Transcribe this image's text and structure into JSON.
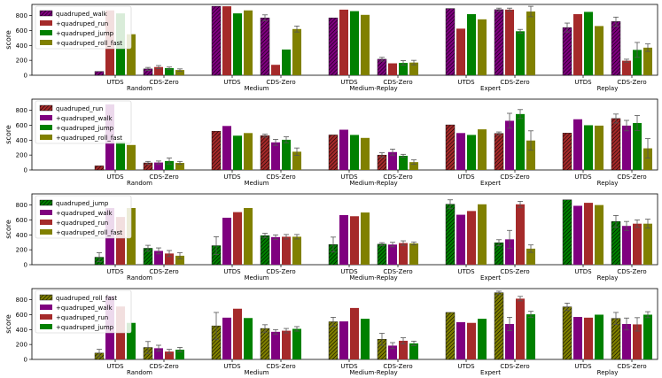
{
  "chart_data": [
    {
      "type": "bar",
      "ylabel": "score",
      "ylim": [
        0,
        950
      ],
      "yticks": [
        0,
        200,
        400,
        600,
        800
      ],
      "methods": [
        "UTDS",
        "CDS-Zero"
      ],
      "datasets": [
        "Random",
        "Medium",
        "Medium-Replay",
        "Expert",
        "Replay"
      ],
      "series": [
        {
          "name": "quadruped_walk",
          "color": "#7f007f",
          "hatch": true,
          "values": [
            [
              50,
              85
            ],
            [
              925,
              770
            ],
            [
              770,
              215
            ],
            [
              895,
              880
            ],
            [
              640,
              720
            ]
          ],
          "err": [
            [
              0,
              20
            ],
            [
              0,
              40
            ],
            [
              0,
              25
            ],
            [
              0,
              20
            ],
            [
              60,
              60
            ]
          ]
        },
        {
          "name": "+quadruped_run",
          "color": "#a52a2a",
          "hatch": false,
          "values": [
            [
              870,
              110
            ],
            [
              925,
              140
            ],
            [
              880,
              160
            ],
            [
              625,
              880
            ],
            [
              820,
              195
            ]
          ],
          "err": [
            [
              0,
              20
            ],
            [
              0,
              0
            ],
            [
              0,
              0
            ],
            [
              0,
              20
            ],
            [
              0,
              20
            ]
          ]
        },
        {
          "name": "+quadruped_jump",
          "color": "#008000",
          "hatch": false,
          "values": [
            [
              830,
              95
            ],
            [
              830,
              345
            ],
            [
              860,
              165
            ],
            [
              820,
              590
            ],
            [
              850,
              340
            ]
          ],
          "err": [
            [
              0,
              15
            ],
            [
              0,
              0
            ],
            [
              0,
              30
            ],
            [
              0,
              25
            ],
            [
              0,
              100
            ]
          ]
        },
        {
          "name": "+quadruped_roll_fast",
          "color": "#808000",
          "hatch": false,
          "values": [
            [
              550,
              70
            ],
            [
              870,
              620
            ],
            [
              810,
              170
            ],
            [
              750,
              855
            ],
            [
              660,
              370
            ]
          ],
          "err": [
            [
              0,
              15
            ],
            [
              0,
              40
            ],
            [
              0,
              30
            ],
            [
              0,
              70
            ],
            [
              0,
              50
            ]
          ]
        }
      ]
    },
    {
      "type": "bar",
      "ylabel": "score",
      "ylim": [
        0,
        950
      ],
      "yticks": [
        0,
        200,
        400,
        600,
        800
      ],
      "methods": [
        "UTDS",
        "CDS-Zero"
      ],
      "datasets": [
        "Random",
        "Medium",
        "Medium-Replay",
        "Expert",
        "Replay"
      ],
      "series": [
        {
          "name": "quadruped_run",
          "color": "#a52a2a",
          "hatch": true,
          "values": [
            [
              55,
              95
            ],
            [
              520,
              460
            ],
            [
              470,
              200
            ],
            [
              605,
              490
            ],
            [
              495,
              690
            ]
          ],
          "err": [
            [
              0,
              20
            ],
            [
              0,
              20
            ],
            [
              0,
              30
            ],
            [
              0,
              20
            ],
            [
              0,
              60
            ]
          ]
        },
        {
          "name": "+quadruped_walk",
          "color": "#7f007f",
          "hatch": false,
          "values": [
            [
              880,
              100
            ],
            [
              590,
              370
            ],
            [
              540,
              240
            ],
            [
              495,
              660
            ],
            [
              680,
              595
            ]
          ],
          "err": [
            [
              0,
              20
            ],
            [
              0,
              40
            ],
            [
              0,
              40
            ],
            [
              0,
              100
            ],
            [
              0,
              70
            ]
          ]
        },
        {
          "name": "+quadruped_jump",
          "color": "#008000",
          "hatch": false,
          "values": [
            [
              380,
              120
            ],
            [
              460,
              405
            ],
            [
              470,
              190
            ],
            [
              470,
              750
            ],
            [
              600,
              630
            ]
          ],
          "err": [
            [
              0,
              40
            ],
            [
              0,
              40
            ],
            [
              0,
              20
            ],
            [
              0,
              60
            ],
            [
              0,
              100
            ]
          ]
        },
        {
          "name": "+quadruped_roll_fast",
          "color": "#808000",
          "hatch": false,
          "values": [
            [
              335,
              95
            ],
            [
              495,
              245
            ],
            [
              430,
              105
            ],
            [
              545,
              395
            ],
            [
              595,
              290
            ]
          ],
          "err": [
            [
              0,
              20
            ],
            [
              0,
              50
            ],
            [
              0,
              30
            ],
            [
              0,
              130
            ],
            [
              0,
              130
            ]
          ]
        }
      ]
    },
    {
      "type": "bar",
      "ylabel": "score",
      "ylim": [
        0,
        950
      ],
      "yticks": [
        0,
        200,
        400,
        600,
        800
      ],
      "methods": [
        "UTDS",
        "CDS-Zero"
      ],
      "datasets": [
        "Random",
        "Medium",
        "Medium-Replay",
        "Expert",
        "Replay"
      ],
      "series": [
        {
          "name": "quadruped_jump",
          "color": "#008000",
          "hatch": true,
          "values": [
            [
              100,
              220
            ],
            [
              255,
              390
            ],
            [
              270,
              275
            ],
            [
              810,
              295
            ],
            [
              870,
              580
            ]
          ],
          "err": [
            [
              60,
              40
            ],
            [
              120,
              30
            ],
            [
              100,
              20
            ],
            [
              60,
              40
            ],
            [
              0,
              80
            ]
          ]
        },
        {
          "name": "+quadruped_walk",
          "color": "#7f007f",
          "hatch": false,
          "values": [
            [
              760,
              185
            ],
            [
              630,
              370
            ],
            [
              665,
              270
            ],
            [
              670,
              340
            ],
            [
              790,
              520
            ]
          ],
          "err": [
            [
              0,
              40
            ],
            [
              0,
              30
            ],
            [
              0,
              30
            ],
            [
              0,
              120
            ],
            [
              0,
              60
            ]
          ]
        },
        {
          "name": "+quadruped_run",
          "color": "#a52a2a",
          "hatch": false,
          "values": [
            [
              640,
              150
            ],
            [
              705,
              375
            ],
            [
              650,
              290
            ],
            [
              720,
              810
            ],
            [
              830,
              550
            ]
          ],
          "err": [
            [
              0,
              40
            ],
            [
              0,
              30
            ],
            [
              0,
              30
            ],
            [
              0,
              40
            ],
            [
              0,
              50
            ]
          ]
        },
        {
          "name": "+quadruped_roll_fast",
          "color": "#808000",
          "hatch": false,
          "values": [
            [
              760,
              120
            ],
            [
              760,
              375
            ],
            [
              700,
              285
            ],
            [
              810,
              215
            ],
            [
              800,
              550
            ]
          ],
          "err": [
            [
              0,
              40
            ],
            [
              0,
              30
            ],
            [
              0,
              20
            ],
            [
              0,
              50
            ],
            [
              0,
              60
            ]
          ]
        }
      ]
    },
    {
      "type": "bar",
      "ylabel": "score",
      "ylim": [
        0,
        950
      ],
      "yticks": [
        0,
        200,
        400,
        600,
        800
      ],
      "methods": [
        "UTDS",
        "CDS-Zero"
      ],
      "datasets": [
        "Random",
        "Medium",
        "Medium-Replay",
        "Expert",
        "Replay"
      ],
      "series": [
        {
          "name": "quadruped_roll_fast",
          "color": "#808000",
          "hatch": true,
          "values": [
            [
              85,
              160
            ],
            [
              450,
              415
            ],
            [
              505,
              270
            ],
            [
              630,
              895
            ],
            [
              705,
              550
            ]
          ],
          "err": [
            [
              50,
              80
            ],
            [
              180,
              50
            ],
            [
              60,
              80
            ],
            [
              0,
              20
            ],
            [
              50,
              80
            ]
          ]
        },
        {
          "name": "+quadruped_walk",
          "color": "#7f007f",
          "hatch": false,
          "values": [
            [
              850,
              150
            ],
            [
              560,
              370
            ],
            [
              510,
              185
            ],
            [
              500,
              475
            ],
            [
              570,
              475
            ]
          ],
          "err": [
            [
              0,
              40
            ],
            [
              0,
              30
            ],
            [
              0,
              40
            ],
            [
              0,
              90
            ],
            [
              0,
              80
            ]
          ]
        },
        {
          "name": "+quadruped_run",
          "color": "#a52a2a",
          "hatch": false,
          "values": [
            [
              710,
              105
            ],
            [
              680,
              385
            ],
            [
              690,
              250
            ],
            [
              490,
              815
            ],
            [
              560,
              470
            ]
          ],
          "err": [
            [
              0,
              30
            ],
            [
              0,
              30
            ],
            [
              0,
              40
            ],
            [
              0,
              30
            ],
            [
              0,
              90
            ]
          ]
        },
        {
          "name": "+quadruped_jump",
          "color": "#008000",
          "hatch": false,
          "values": [
            [
              490,
              130
            ],
            [
              555,
              410
            ],
            [
              545,
              215
            ],
            [
              545,
              605
            ],
            [
              600,
              600
            ]
          ],
          "err": [
            [
              0,
              30
            ],
            [
              0,
              30
            ],
            [
              0,
              30
            ],
            [
              0,
              40
            ],
            [
              0,
              40
            ]
          ]
        }
      ]
    }
  ]
}
